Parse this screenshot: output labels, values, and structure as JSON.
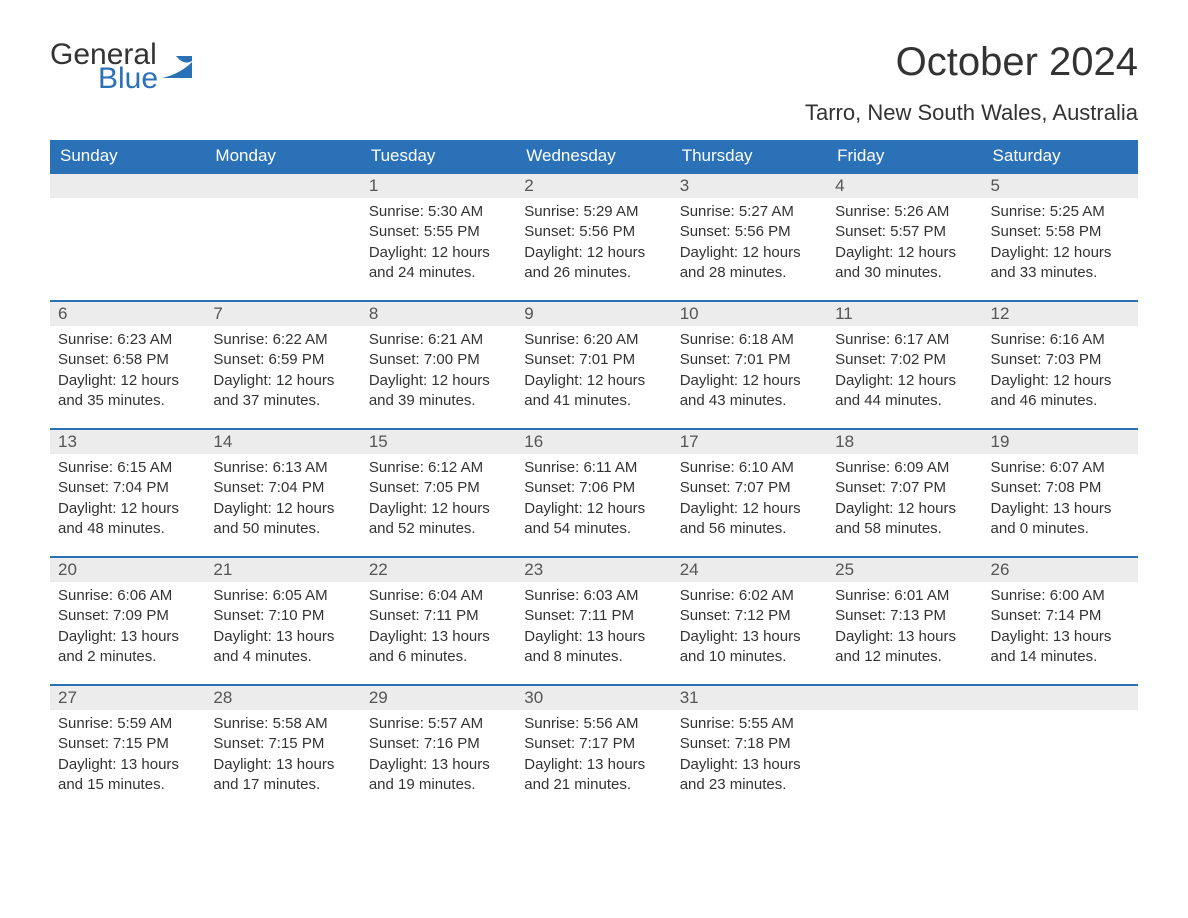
{
  "brand": {
    "word1": "General",
    "word2": "Blue"
  },
  "title": "October 2024",
  "location": "Tarro, New South Wales, Australia",
  "colors": {
    "header_bg": "#2a71b8",
    "header_text": "#ffffff",
    "daynum_bg": "#ececec",
    "daynum_border": "#2a71b8",
    "body_text": "#333333",
    "logo_blue": "#2a71b8",
    "page_bg": "#ffffff"
  },
  "typography": {
    "title_fontsize": 40,
    "location_fontsize": 22,
    "weekday_fontsize": 17,
    "daynum_fontsize": 17,
    "cell_fontsize": 15,
    "logo_fontsize": 30
  },
  "weekdays": [
    "Sunday",
    "Monday",
    "Tuesday",
    "Wednesday",
    "Thursday",
    "Friday",
    "Saturday"
  ],
  "labels": {
    "sunrise": "Sunrise:",
    "sunset": "Sunset:",
    "daylight": "Daylight:"
  },
  "weeks": [
    [
      null,
      null,
      {
        "d": "1",
        "sunrise": "5:30 AM",
        "sunset": "5:55 PM",
        "daylight": "12 hours and 24 minutes."
      },
      {
        "d": "2",
        "sunrise": "5:29 AM",
        "sunset": "5:56 PM",
        "daylight": "12 hours and 26 minutes."
      },
      {
        "d": "3",
        "sunrise": "5:27 AM",
        "sunset": "5:56 PM",
        "daylight": "12 hours and 28 minutes."
      },
      {
        "d": "4",
        "sunrise": "5:26 AM",
        "sunset": "5:57 PM",
        "daylight": "12 hours and 30 minutes."
      },
      {
        "d": "5",
        "sunrise": "5:25 AM",
        "sunset": "5:58 PM",
        "daylight": "12 hours and 33 minutes."
      }
    ],
    [
      {
        "d": "6",
        "sunrise": "6:23 AM",
        "sunset": "6:58 PM",
        "daylight": "12 hours and 35 minutes."
      },
      {
        "d": "7",
        "sunrise": "6:22 AM",
        "sunset": "6:59 PM",
        "daylight": "12 hours and 37 minutes."
      },
      {
        "d": "8",
        "sunrise": "6:21 AM",
        "sunset": "7:00 PM",
        "daylight": "12 hours and 39 minutes."
      },
      {
        "d": "9",
        "sunrise": "6:20 AM",
        "sunset": "7:01 PM",
        "daylight": "12 hours and 41 minutes."
      },
      {
        "d": "10",
        "sunrise": "6:18 AM",
        "sunset": "7:01 PM",
        "daylight": "12 hours and 43 minutes."
      },
      {
        "d": "11",
        "sunrise": "6:17 AM",
        "sunset": "7:02 PM",
        "daylight": "12 hours and 44 minutes."
      },
      {
        "d": "12",
        "sunrise": "6:16 AM",
        "sunset": "7:03 PM",
        "daylight": "12 hours and 46 minutes."
      }
    ],
    [
      {
        "d": "13",
        "sunrise": "6:15 AM",
        "sunset": "7:04 PM",
        "daylight": "12 hours and 48 minutes."
      },
      {
        "d": "14",
        "sunrise": "6:13 AM",
        "sunset": "7:04 PM",
        "daylight": "12 hours and 50 minutes."
      },
      {
        "d": "15",
        "sunrise": "6:12 AM",
        "sunset": "7:05 PM",
        "daylight": "12 hours and 52 minutes."
      },
      {
        "d": "16",
        "sunrise": "6:11 AM",
        "sunset": "7:06 PM",
        "daylight": "12 hours and 54 minutes."
      },
      {
        "d": "17",
        "sunrise": "6:10 AM",
        "sunset": "7:07 PM",
        "daylight": "12 hours and 56 minutes."
      },
      {
        "d": "18",
        "sunrise": "6:09 AM",
        "sunset": "7:07 PM",
        "daylight": "12 hours and 58 minutes."
      },
      {
        "d": "19",
        "sunrise": "6:07 AM",
        "sunset": "7:08 PM",
        "daylight": "13 hours and 0 minutes."
      }
    ],
    [
      {
        "d": "20",
        "sunrise": "6:06 AM",
        "sunset": "7:09 PM",
        "daylight": "13 hours and 2 minutes."
      },
      {
        "d": "21",
        "sunrise": "6:05 AM",
        "sunset": "7:10 PM",
        "daylight": "13 hours and 4 minutes."
      },
      {
        "d": "22",
        "sunrise": "6:04 AM",
        "sunset": "7:11 PM",
        "daylight": "13 hours and 6 minutes."
      },
      {
        "d": "23",
        "sunrise": "6:03 AM",
        "sunset": "7:11 PM",
        "daylight": "13 hours and 8 minutes."
      },
      {
        "d": "24",
        "sunrise": "6:02 AM",
        "sunset": "7:12 PM",
        "daylight": "13 hours and 10 minutes."
      },
      {
        "d": "25",
        "sunrise": "6:01 AM",
        "sunset": "7:13 PM",
        "daylight": "13 hours and 12 minutes."
      },
      {
        "d": "26",
        "sunrise": "6:00 AM",
        "sunset": "7:14 PM",
        "daylight": "13 hours and 14 minutes."
      }
    ],
    [
      {
        "d": "27",
        "sunrise": "5:59 AM",
        "sunset": "7:15 PM",
        "daylight": "13 hours and 15 minutes."
      },
      {
        "d": "28",
        "sunrise": "5:58 AM",
        "sunset": "7:15 PM",
        "daylight": "13 hours and 17 minutes."
      },
      {
        "d": "29",
        "sunrise": "5:57 AM",
        "sunset": "7:16 PM",
        "daylight": "13 hours and 19 minutes."
      },
      {
        "d": "30",
        "sunrise": "5:56 AM",
        "sunset": "7:17 PM",
        "daylight": "13 hours and 21 minutes."
      },
      {
        "d": "31",
        "sunrise": "5:55 AM",
        "sunset": "7:18 PM",
        "daylight": "13 hours and 23 minutes."
      },
      null,
      null
    ]
  ]
}
